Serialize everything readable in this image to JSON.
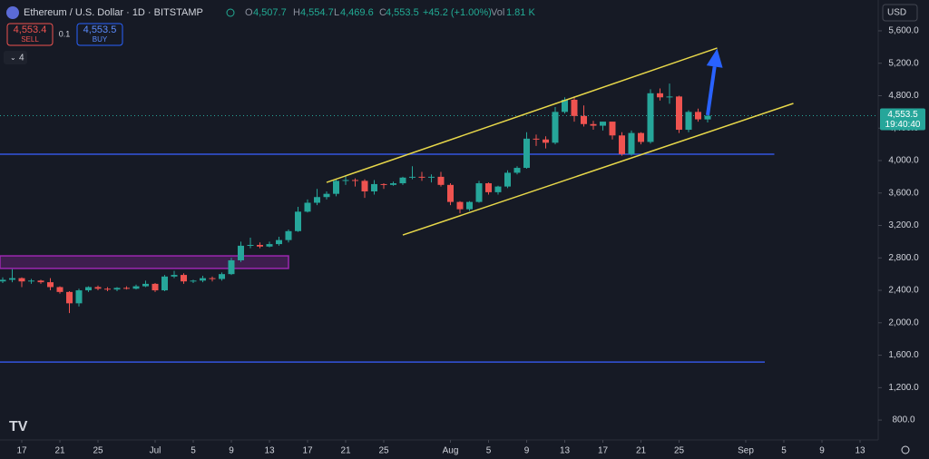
{
  "header": {
    "symbol": "Ethereum / U.S. Dollar · 1D · BITSTAMP",
    "ohlc": [
      {
        "label": "O",
        "value": "4,507.7"
      },
      {
        "label": "H",
        "value": "4,554.7"
      },
      {
        "label": "L",
        "value": "4,469.6"
      },
      {
        "label": "C",
        "value": "4,553.5"
      }
    ],
    "change": "+45.2 (+1.00%)",
    "volume_label": "Vol",
    "volume": "1.81 K"
  },
  "trade": {
    "sell_price": "4,553.4",
    "sell_label": "SELL",
    "quantity": "0.1",
    "buy_price": "4,553.5",
    "buy_label": "BUY"
  },
  "indicators_count": "4",
  "currency": "USD",
  "chart_data": {
    "type": "candlestick",
    "up_color": "#26a69a",
    "down_color": "#ef5350",
    "grid": false,
    "x": [
      "06-15",
      "06-16",
      "06-17",
      "06-18",
      "06-19",
      "06-20",
      "06-21",
      "06-22",
      "06-23",
      "06-24",
      "06-25",
      "06-26",
      "06-27",
      "06-28",
      "06-29",
      "06-30",
      "07-01",
      "07-02",
      "07-03",
      "07-04",
      "07-05",
      "07-06",
      "07-07",
      "07-08",
      "07-09",
      "07-10",
      "07-11",
      "07-12",
      "07-13",
      "07-14",
      "07-15",
      "07-16",
      "07-17",
      "07-18",
      "07-19",
      "07-20",
      "07-21",
      "07-22",
      "07-23",
      "07-24",
      "07-25",
      "07-26",
      "07-27",
      "07-28",
      "07-29",
      "07-30",
      "07-31",
      "08-01",
      "08-02",
      "08-03",
      "08-04",
      "08-05",
      "08-06",
      "08-07",
      "08-08",
      "08-09",
      "08-10",
      "08-11",
      "08-12",
      "08-13",
      "08-14",
      "08-15",
      "08-16",
      "08-17",
      "08-18",
      "08-19",
      "08-20",
      "08-21",
      "08-22",
      "08-23",
      "08-24",
      "08-25",
      "08-26",
      "08-27",
      "08-28"
    ],
    "open": [
      2510,
      2530,
      2550,
      2510,
      2520,
      2500,
      2440,
      2380,
      2240,
      2400,
      2440,
      2420,
      2410,
      2430,
      2420,
      2450,
      2480,
      2400,
      2570,
      2590,
      2510,
      2520,
      2550,
      2540,
      2600,
      2770,
      2950,
      2960,
      2940,
      2970,
      3020,
      3130,
      3370,
      3480,
      3550,
      3590,
      3750,
      3760,
      3750,
      3620,
      3710,
      3700,
      3720,
      3790,
      3800,
      3790,
      3800,
      3700,
      3490,
      3400,
      3490,
      3720,
      3610,
      3680,
      3850,
      3910,
      4270,
      4260,
      4220,
      4600,
      4750,
      4550,
      4450,
      4430,
      4480,
      4310,
      4080,
      4340,
      4230,
      4830,
      4780,
      4790,
      4380,
      4600,
      4507.7
    ],
    "high": [
      2560,
      2660,
      2560,
      2540,
      2530,
      2550,
      2450,
      2390,
      2420,
      2450,
      2460,
      2440,
      2440,
      2450,
      2470,
      2520,
      2490,
      2590,
      2640,
      2610,
      2530,
      2580,
      2570,
      2620,
      2800,
      3000,
      3050,
      2990,
      3000,
      3060,
      3150,
      3430,
      3520,
      3650,
      3620,
      3770,
      3820,
      3780,
      3770,
      3760,
      3720,
      3740,
      3800,
      3930,
      3860,
      3830,
      3860,
      3720,
      3500,
      3500,
      3750,
      3730,
      3690,
      3880,
      3930,
      4350,
      4320,
      4300,
      4660,
      4780,
      4790,
      4680,
      4490,
      4480,
      4480,
      4350,
      4370,
      4350,
      4880,
      4890,
      4950,
      4800,
      4620,
      4640,
      4554.7
    ],
    "low": [
      2490,
      2500,
      2440,
      2480,
      2480,
      2400,
      2360,
      2120,
      2200,
      2380,
      2400,
      2390,
      2390,
      2410,
      2410,
      2440,
      2380,
      2390,
      2550,
      2480,
      2490,
      2500,
      2510,
      2520,
      2590,
      2750,
      2920,
      2920,
      2930,
      2950,
      2990,
      3120,
      3360,
      3450,
      3520,
      3560,
      3700,
      3680,
      3540,
      3580,
      3650,
      3690,
      3700,
      3770,
      3750,
      3730,
      3680,
      3450,
      3350,
      3380,
      3480,
      3580,
      3580,
      3660,
      3830,
      3900,
      4180,
      4150,
      4200,
      4580,
      4480,
      4420,
      4380,
      4370,
      4260,
      4060,
      4060,
      4200,
      4210,
      4740,
      4700,
      4340,
      4350,
      4480,
      4469.6
    ],
    "close": [
      2530,
      2550,
      2510,
      2520,
      2500,
      2440,
      2380,
      2240,
      2400,
      2440,
      2420,
      2410,
      2430,
      2420,
      2450,
      2480,
      2400,
      2570,
      2590,
      2510,
      2520,
      2550,
      2540,
      2600,
      2770,
      2950,
      2960,
      2940,
      2970,
      3020,
      3130,
      3370,
      3480,
      3550,
      3590,
      3750,
      3760,
      3750,
      3620,
      3710,
      3700,
      3720,
      3790,
      3800,
      3790,
      3800,
      3700,
      3490,
      3400,
      3490,
      3720,
      3610,
      3680,
      3850,
      3910,
      4270,
      4260,
      4220,
      4600,
      4750,
      4550,
      4450,
      4430,
      4480,
      4310,
      4080,
      4340,
      4230,
      4830,
      4780,
      4790,
      4380,
      4600,
      4508.3,
      4553.5
    ],
    "xlim": [
      "06-14",
      "09-14"
    ],
    "xticks": [
      {
        "value": "06-17",
        "label": "17"
      },
      {
        "value": "06-21",
        "label": "21"
      },
      {
        "value": "06-25",
        "label": "25"
      },
      {
        "value": "07-01",
        "label": "Jul"
      },
      {
        "value": "07-05",
        "label": "5"
      },
      {
        "value": "07-09",
        "label": "9"
      },
      {
        "value": "07-13",
        "label": "13"
      },
      {
        "value": "07-17",
        "label": "17"
      },
      {
        "value": "07-21",
        "label": "21"
      },
      {
        "value": "07-25",
        "label": "25"
      },
      {
        "value": "08-01",
        "label": "Aug"
      },
      {
        "value": "08-05",
        "label": "5"
      },
      {
        "value": "08-09",
        "label": "9"
      },
      {
        "value": "08-13",
        "label": "13"
      },
      {
        "value": "08-17",
        "label": "17"
      },
      {
        "value": "08-21",
        "label": "21"
      },
      {
        "value": "08-25",
        "label": "25"
      },
      {
        "value": "09-01",
        "label": "Sep"
      },
      {
        "value": "09-05",
        "label": "5"
      },
      {
        "value": "09-09",
        "label": "9"
      },
      {
        "value": "09-13",
        "label": "13"
      }
    ],
    "ylim": [
      555,
      5980
    ],
    "yticks": [
      {
        "value": 800,
        "label": "800.0"
      },
      {
        "value": 1200,
        "label": "1,200.0"
      },
      {
        "value": 1600,
        "label": "1,600.0"
      },
      {
        "value": 2000,
        "label": "2,000.0"
      },
      {
        "value": 2400,
        "label": "2,400.0"
      },
      {
        "value": 2800,
        "label": "2,800.0"
      },
      {
        "value": 3200,
        "label": "3,200.0"
      },
      {
        "value": 3600,
        "label": "3,600.0"
      },
      {
        "value": 4000,
        "label": "4,000.0"
      },
      {
        "value": 4400,
        "label": "4,400.0"
      },
      {
        "value": 4800,
        "label": "4,800.0"
      },
      {
        "value": 5200,
        "label": "5,200.0"
      },
      {
        "value": 5600,
        "label": "5,600.0"
      }
    ],
    "last_price": {
      "value": 4553.5,
      "label": "4,553.5"
    },
    "countdown": "19:40:40",
    "levels": [
      {
        "value": 4078,
        "end": "09-04",
        "color": "#3355e0"
      },
      {
        "value": 1516,
        "end": "09-03",
        "color": "#3355e0"
      }
    ],
    "zone": {
      "low": 2670,
      "high": 2825,
      "end": "07-15",
      "color": "#9c27b0"
    },
    "channel": {
      "color": "#e8d84a",
      "lines": [
        {
          "from": [
            "07-19",
            3731
          ],
          "to": [
            "08-29",
            5388
          ]
        },
        {
          "from": [
            "07-27",
            3082
          ],
          "to": [
            "09-06",
            4705
          ]
        }
      ]
    },
    "arrow": {
      "from": [
        "08-28",
        4560
      ],
      "to": [
        "08-29",
        5380
      ],
      "color": "#2962ff"
    }
  }
}
